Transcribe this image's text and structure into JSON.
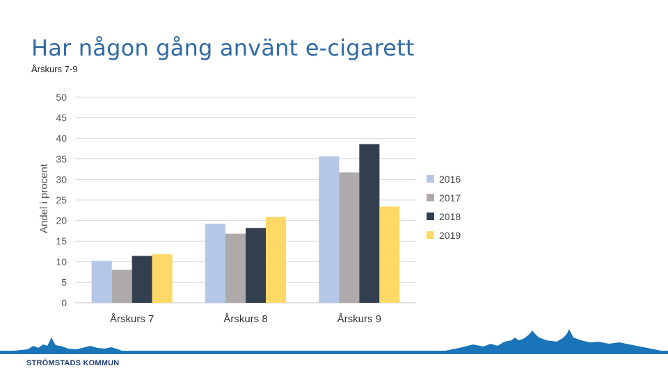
{
  "slide": {
    "title": "Har någon gång använt e-cigarett",
    "subtitle": "Årskurs 7-9",
    "brand": "STRÖMSTADS KOMMUN"
  },
  "colors": {
    "title": "#2f6aa3",
    "footer": "#1a74b8",
    "skyline": "#1a74b8",
    "brand": "#1b3c73"
  },
  "chart_data": {
    "type": "bar",
    "title": "",
    "ylabel": "Andel i procent",
    "xlabel": "",
    "ylim": [
      0,
      50
    ],
    "yticks": [
      0,
      5,
      10,
      15,
      20,
      25,
      30,
      35,
      40,
      45,
      50
    ],
    "grid": true,
    "legend_position": "right",
    "categories": [
      "Årskurs 7",
      "Årskurs 8",
      "Årskurs 9"
    ],
    "series": [
      {
        "name": "2016",
        "color": "#b4c7e7",
        "values": [
          10.2,
          19.2,
          35.6
        ]
      },
      {
        "name": "2017",
        "color": "#aeaaaa",
        "values": [
          8.0,
          16.8,
          31.7
        ]
      },
      {
        "name": "2018",
        "color": "#323f4f",
        "values": [
          11.4,
          18.2,
          38.6
        ]
      },
      {
        "name": "2019",
        "color": "#ffd966",
        "values": [
          11.8,
          20.9,
          23.4
        ]
      }
    ]
  }
}
